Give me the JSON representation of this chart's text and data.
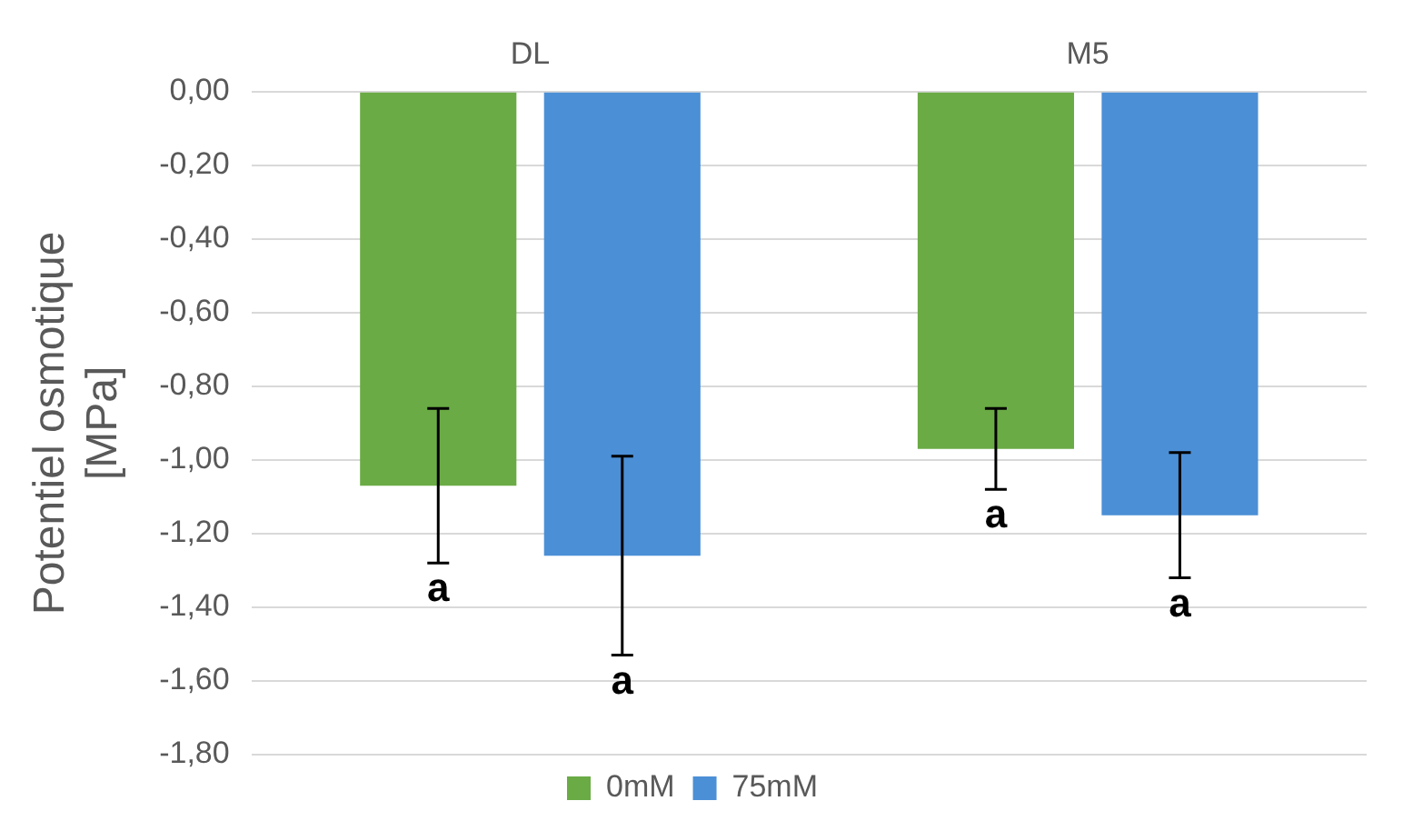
{
  "chart_data": {
    "type": "bar",
    "ylabel": "Potentiel osmotique [MPa]",
    "categories": [
      "DL",
      "M5"
    ],
    "series": [
      {
        "name": "0mM",
        "color": "#6aab45",
        "values": [
          -1.07,
          -0.97
        ],
        "errors": [
          0.21,
          0.11
        ]
      },
      {
        "name": "75mM",
        "color": "#4b8fd6",
        "values": [
          -1.26,
          -1.15
        ],
        "errors": [
          0.27,
          0.17
        ]
      }
    ],
    "ylim": [
      -1.8,
      0
    ],
    "yticks": [
      {
        "value": 0,
        "label": "0,00"
      },
      {
        "value": -0.2,
        "label": "-0,20"
      },
      {
        "value": -0.4,
        "label": "-0,40"
      },
      {
        "value": -0.6,
        "label": "-0,60"
      },
      {
        "value": -0.8,
        "label": "-0,80"
      },
      {
        "value": -1,
        "label": "-1,00"
      },
      {
        "value": -1.2,
        "label": "-1,20"
      },
      {
        "value": -1.4,
        "label": "-1,40"
      },
      {
        "value": -1.6,
        "label": "-1,60"
      },
      {
        "value": -1.8,
        "label": "-1,80"
      }
    ],
    "grid": "y",
    "legend": "bottom",
    "annotations": [
      "a",
      "a",
      "a",
      "a"
    ]
  }
}
